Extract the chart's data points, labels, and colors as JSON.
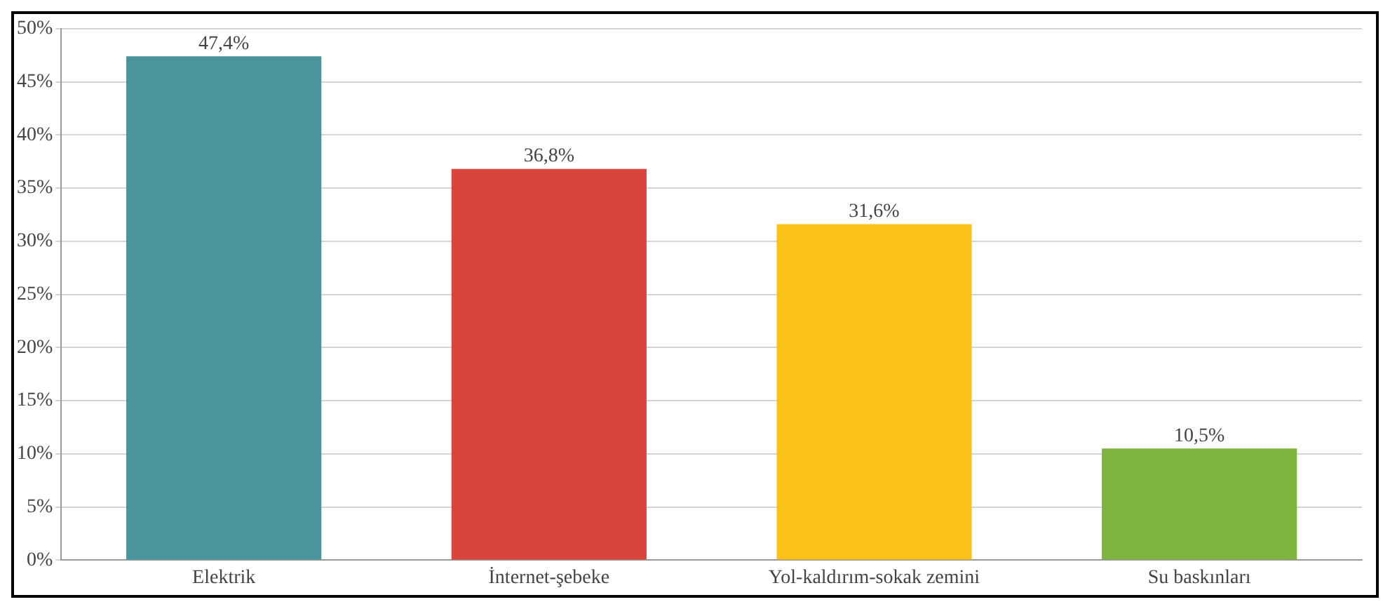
{
  "chart_data": {
    "type": "bar",
    "categories": [
      "Elektrik",
      "İnternet-şebeke",
      "Yol-kaldırım-sokak zemini",
      "Su baskınları"
    ],
    "values": [
      47.4,
      36.8,
      31.6,
      10.5
    ],
    "colors": [
      "#4a949c",
      "#d9443d",
      "#fbc21a",
      "#80b441"
    ],
    "value_labels": [
      "47,4%",
      "36,8%",
      "31,6%",
      "10,5%"
    ],
    "ylim": [
      0,
      50
    ],
    "yticks": [
      {
        "value": 0,
        "label": "0%"
      },
      {
        "value": 5,
        "label": "5%"
      },
      {
        "value": 10,
        "label": "10%"
      },
      {
        "value": 15,
        "label": "15%"
      },
      {
        "value": 20,
        "label": "20%"
      },
      {
        "value": 25,
        "label": "25%"
      },
      {
        "value": 30,
        "label": "30%"
      },
      {
        "value": 35,
        "label": "35%"
      },
      {
        "value": 40,
        "label": "40%"
      },
      {
        "value": 45,
        "label": "45%"
      },
      {
        "value": 50,
        "label": "50%"
      }
    ],
    "grid": "y",
    "legend": false
  }
}
